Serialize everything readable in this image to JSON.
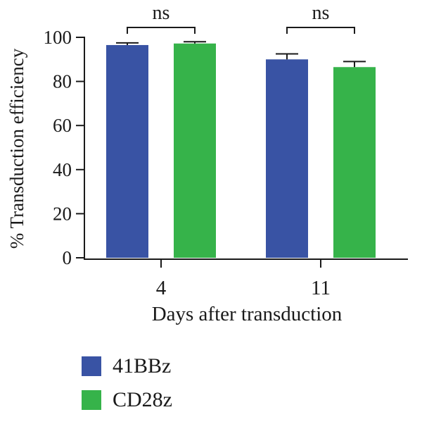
{
  "chart_data": {
    "type": "bar",
    "xlabel": "Days after transduction",
    "ylabel": "% Transduction efficiency",
    "ylim": [
      0,
      100
    ],
    "yticks": [
      0,
      20,
      40,
      60,
      80,
      100
    ],
    "categories": [
      "4",
      "11"
    ],
    "series": [
      {
        "name": "41BBz",
        "color": "#3953a4",
        "values": [
          96.5,
          90
        ],
        "errors": [
          1,
          2.5
        ]
      },
      {
        "name": "CD28z",
        "color": "#36b34a",
        "values": [
          97.2,
          86.5
        ],
        "errors": [
          0.8,
          2.5
        ]
      }
    ],
    "annotations": [
      {
        "category_index": 0,
        "text": "ns"
      },
      {
        "category_index": 1,
        "text": "ns"
      }
    ],
    "legend": {
      "position": "bottom-left"
    },
    "grid": false
  }
}
